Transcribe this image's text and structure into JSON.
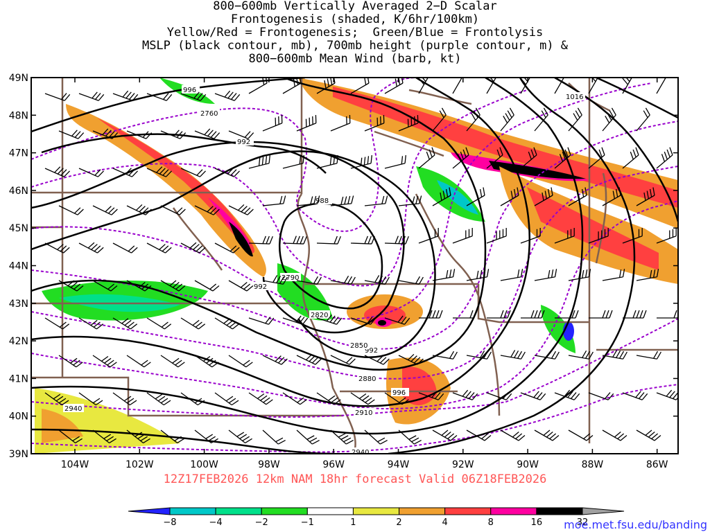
{
  "title": {
    "line1": "800−600mb Vertically Averaged 2−D Scalar",
    "line2": "Frontogenesis (shaded, K/6hr/100km)",
    "line3": "Yellow/Red = Frontogenesis;  Green/Blue = Frontolysis",
    "line4": "MSLP (black contour, mb), 700mb height (purple contour, m) &",
    "line5": "800−600mb Mean Wind (barb, kt)"
  },
  "subtitle": "12Z17FEB2026 12km NAM 18hr forecast Valid 06Z18FEB2026",
  "website": "moe.met.fsu.edu/banding",
  "axes": {
    "lat_labels": [
      "49N",
      "48N",
      "47N",
      "46N",
      "45N",
      "44N",
      "43N",
      "42N",
      "41N",
      "40N",
      "39N"
    ],
    "lon_labels": [
      "104W",
      "102W",
      "100W",
      "98W",
      "96W",
      "94W",
      "92W",
      "90W",
      "88W",
      "86W"
    ]
  },
  "colorbar": {
    "levels": [
      "−8",
      "−4",
      "−2",
      "−1",
      "1",
      "2",
      "4",
      "8",
      "16",
      "32"
    ],
    "colors": [
      "#2222ff",
      "#00c8c8",
      "#00e08a",
      "#22dd22",
      "#ffffff",
      "#e8e840",
      "#f0a030",
      "#ff4040",
      "#ff00a0",
      "#000000",
      "#a0a0a0"
    ]
  },
  "contour_labels": {
    "mslp": [
      "996",
      "992",
      "988",
      "992",
      "992",
      "996",
      "1016"
    ],
    "height": [
      "2760",
      "2790",
      "2820",
      "2850",
      "2880",
      "2910",
      "2940",
      "2940"
    ]
  },
  "colors": {
    "mslp": "#000000",
    "height": "#9900cc",
    "borders": "#806050",
    "subtitle": "#ff5555",
    "website": "#3333ff"
  }
}
